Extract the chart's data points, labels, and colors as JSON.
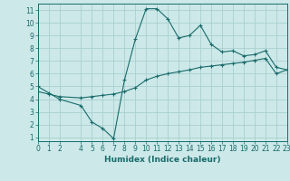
{
  "title": "",
  "xlabel": "Humidex (Indice chaleur)",
  "bg_color": "#cce8e8",
  "grid_color": "#aacfcf",
  "line_color": "#1a6b6b",
  "line1_x": [
    0,
    1,
    2,
    4,
    5,
    6,
    7,
    8,
    9,
    10,
    11,
    12,
    13,
    14,
    15,
    16,
    17,
    18,
    19,
    20,
    21,
    22,
    23
  ],
  "line1_y": [
    5.0,
    4.5,
    4.0,
    3.5,
    2.2,
    1.7,
    0.9,
    5.5,
    8.7,
    11.1,
    11.1,
    10.3,
    8.8,
    9.0,
    9.8,
    8.3,
    7.7,
    7.8,
    7.4,
    7.5,
    7.8,
    6.5,
    6.3
  ],
  "line2_x": [
    0,
    1,
    2,
    4,
    5,
    6,
    7,
    8,
    9,
    10,
    11,
    12,
    13,
    14,
    15,
    16,
    17,
    18,
    19,
    20,
    21,
    22,
    23
  ],
  "line2_y": [
    4.6,
    4.4,
    4.2,
    4.1,
    4.2,
    4.3,
    4.4,
    4.6,
    4.9,
    5.5,
    5.8,
    6.0,
    6.15,
    6.3,
    6.5,
    6.6,
    6.7,
    6.8,
    6.9,
    7.05,
    7.2,
    6.0,
    6.3
  ],
  "xlim": [
    0,
    23
  ],
  "ylim": [
    0.7,
    11.5
  ],
  "xticks": [
    0,
    1,
    2,
    4,
    5,
    6,
    7,
    8,
    9,
    10,
    11,
    12,
    13,
    14,
    15,
    16,
    17,
    18,
    19,
    20,
    21,
    22,
    23
  ],
  "yticks": [
    1,
    2,
    3,
    4,
    5,
    6,
    7,
    8,
    9,
    10,
    11
  ],
  "tick_fontsize": 5.5,
  "xlabel_fontsize": 6.5
}
